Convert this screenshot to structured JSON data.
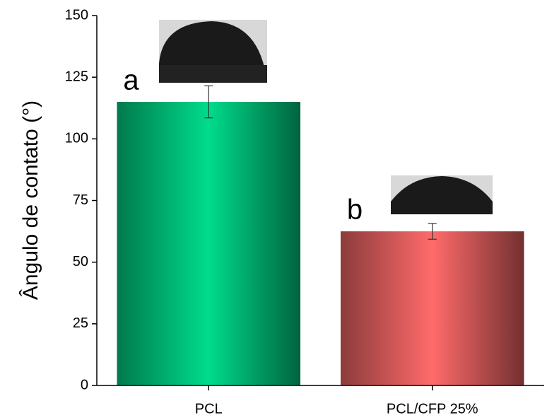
{
  "chart_data": {
    "type": "bar",
    "y_label": "Ângulo de contato (°)",
    "categories": [
      "PCL",
      "PCL/CFP 25%"
    ],
    "values": [
      115,
      62.5
    ],
    "errors": [
      6.5,
      3.2
    ],
    "colors": [
      "#00dc8c",
      "#ff6b6b"
    ],
    "annotations": [
      "a",
      "b"
    ],
    "ylim": [
      0,
      150
    ],
    "yticks": [
      0,
      25,
      50,
      75,
      100,
      125,
      150
    ]
  }
}
